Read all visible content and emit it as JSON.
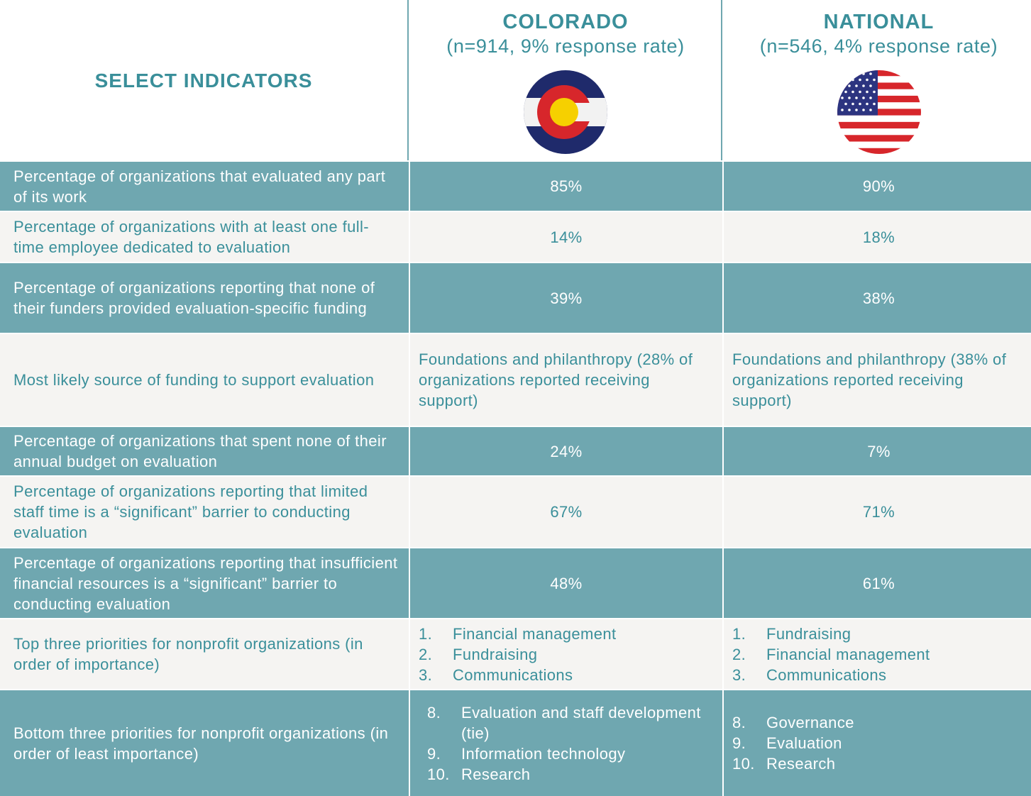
{
  "header": {
    "indicators": "SELECT INDICATORS",
    "colorado": {
      "name": "COLORADO",
      "sample": "(n=914, 9% response rate)"
    },
    "national": {
      "name": "NATIONAL",
      "sample": "(n=546, 4% response rate)"
    }
  },
  "table": {
    "rows": [
      {
        "indicator": "Percentage of organizations that evaluated any part of its work",
        "colorado": "85%",
        "national": "90%"
      },
      {
        "indicator": "Percentage of organizations with at least one full-time employee dedicated to evaluation",
        "colorado": "14%",
        "national": "18%"
      },
      {
        "indicator": "Percentage of organizations reporting that none of their funders provided evaluation-specific funding",
        "colorado": "39%",
        "national": "38%"
      },
      {
        "indicator": "Most likely source of funding to support evaluation",
        "colorado": "Foundations and philanthropy (28% of organizations reported receiving support)",
        "national": "Foundations and philanthropy (38% of organizations reported receiving support)"
      },
      {
        "indicator": "Percentage of organizations that spent none of their annual budget on evaluation",
        "colorado": "24%",
        "national": "7%"
      },
      {
        "indicator": "Percentage of organizations reporting that limited staff time is a “significant” barrier to conducting evaluation",
        "colorado": "67%",
        "national": "71%"
      },
      {
        "indicator": "Percentage of organizations reporting that insufficient financial resources is a “significant” barrier to conducting evaluation",
        "colorado": "48%",
        "national": "61%"
      },
      {
        "indicator": "Top three priorities for nonprofit organizations (in order of importance)",
        "colorado": [
          {
            "num": "1.",
            "text": "Financial management"
          },
          {
            "num": "2.",
            "text": "Fundraising"
          },
          {
            "num": "3.",
            "text": "Communications"
          }
        ],
        "national": [
          {
            "num": "1.",
            "text": "Fundraising"
          },
          {
            "num": "2.",
            "text": "Financial management"
          },
          {
            "num": "3.",
            "text": "Communications"
          }
        ]
      },
      {
        "indicator": "Bottom three priorities for nonprofit organizations (in order of least importance)",
        "colorado": [
          {
            "num": "8.",
            "text": "Evaluation and staff development (tie)"
          },
          {
            "num": "9.",
            "text": "Information technology"
          },
          {
            "num": "10.",
            "text": "Research"
          }
        ],
        "national": [
          {
            "num": "8.",
            "text": "Governance"
          },
          {
            "num": "9.",
            "text": "Evaluation"
          },
          {
            "num": "10.",
            "text": "Research"
          }
        ]
      }
    ]
  }
}
